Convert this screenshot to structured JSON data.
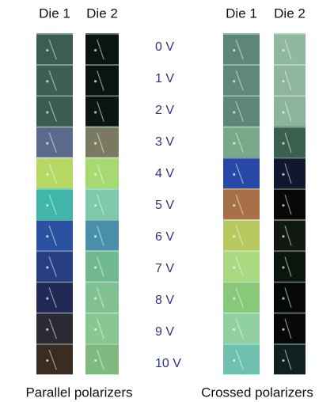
{
  "headers": [
    "Die 1",
    "Die 2",
    "Die 1",
    "Die 2"
  ],
  "voltages": [
    "0 V",
    "1 V",
    "2 V",
    "3 V",
    "4 V",
    "5 V",
    "6 V",
    "7 V",
    "8 V",
    "9 V",
    "10 V"
  ],
  "captions": [
    "Parallel polarizers",
    "Crossed polarizers"
  ]
}
